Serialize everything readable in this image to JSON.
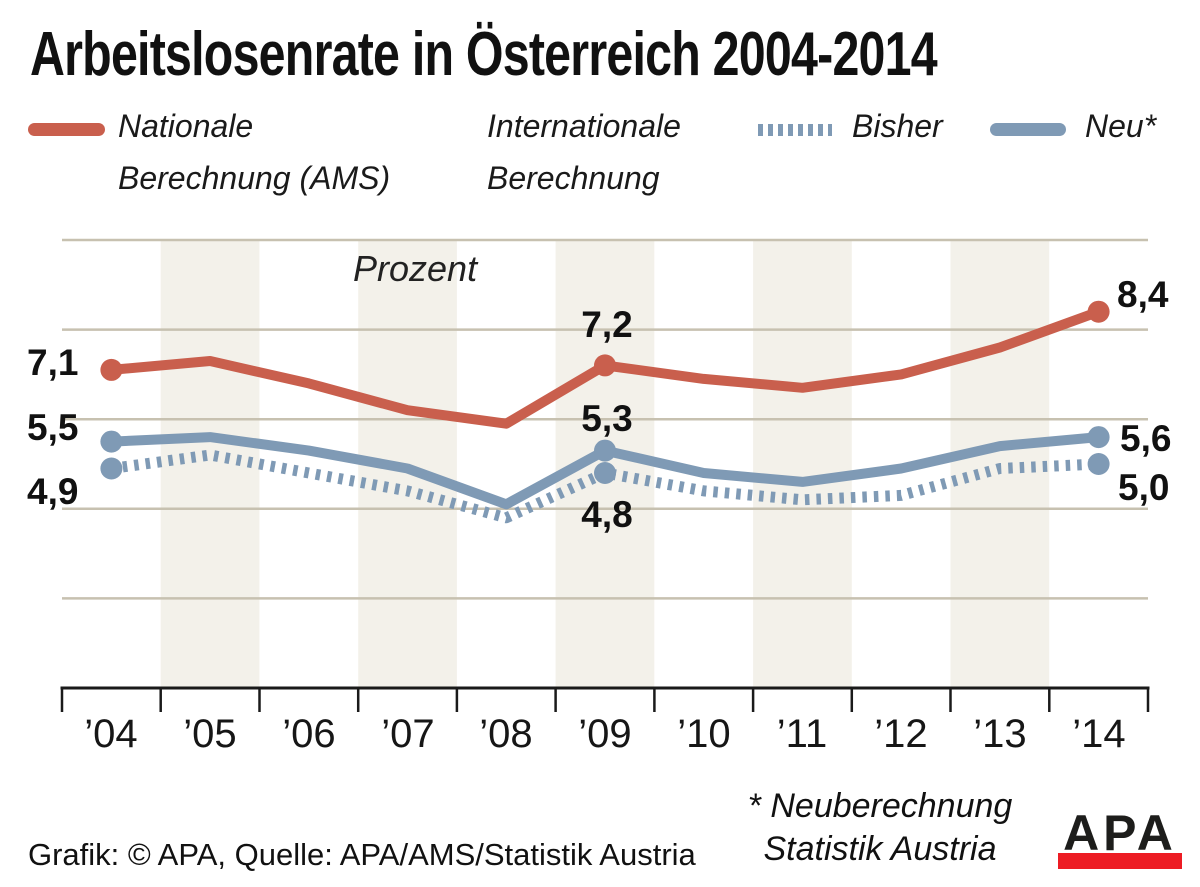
{
  "title": "Arbeitslosenrate in Österreich 2004-2014",
  "legend": {
    "national_line1": "Nationale",
    "national_line2": "Berechnung (AMS)",
    "international_line1": "Internationale",
    "international_line2": "Berechnung",
    "bisher_label": "Bisher",
    "neu_label": "Neu*"
  },
  "chart_data": {
    "type": "line",
    "unit_label": "Prozent",
    "categories": [
      "’04",
      "’05",
      "’06",
      "’07",
      "’08",
      "’09",
      "’10",
      "’11",
      "’12",
      "’13",
      "’14"
    ],
    "years": [
      2004,
      2005,
      2006,
      2007,
      2008,
      2009,
      2010,
      2011,
      2012,
      2013,
      2014
    ],
    "series": [
      {
        "id": "national",
        "name": "Nationale Berechnung (AMS)",
        "style": "solid",
        "color_key": "national",
        "values": [
          7.1,
          7.3,
          6.8,
          6.2,
          5.9,
          7.2,
          6.9,
          6.7,
          7.0,
          7.6,
          8.4
        ]
      },
      {
        "id": "bisher",
        "name": "Internationale Berechnung – Bisher",
        "style": "dotted",
        "color_key": "international",
        "values": [
          4.9,
          5.2,
          4.8,
          4.4,
          3.8,
          4.8,
          4.4,
          4.2,
          4.3,
          4.9,
          5.0
        ]
      },
      {
        "id": "neu",
        "name": "Internationale Berechnung – Neu*",
        "style": "solid",
        "color_key": "international",
        "values": [
          5.5,
          5.6,
          5.3,
          4.9,
          4.1,
          5.3,
          4.8,
          4.6,
          4.9,
          5.4,
          5.6
        ]
      }
    ],
    "ylim": [
      0,
      10
    ],
    "gridline_values": [
      2,
      4,
      6,
      8,
      10
    ],
    "grid": true,
    "legend_position": "top",
    "marker_indices": [
      0,
      5,
      10
    ],
    "stripe_slots": [
      1,
      3,
      5,
      7,
      9
    ]
  },
  "annotations": {
    "point_labels": {
      "national_2004": "7,1",
      "national_2009": "7,2",
      "national_2014": "8,4",
      "neu_2004": "5,5",
      "neu_2009": "5,3",
      "neu_2014": "5,6",
      "bisher_2004": "4,9",
      "bisher_2009": "4,8",
      "bisher_2014": "5,0"
    },
    "footnote_line1": "* Neuberechnung",
    "footnote_line2": "Statistik Austria"
  },
  "footer": {
    "credit": "Grafik: © APA, Quelle: APA/AMS/Statistik Austria"
  },
  "logo": {
    "text": "APA"
  },
  "colors": {
    "national": "#c95f4d",
    "international": "#7f9ab5",
    "gridline": "#c7c1b0",
    "stripe": "#f3f1ea",
    "axis": "#1a1a1a",
    "logo_red": "#ed1c24",
    "text": "#161616"
  }
}
